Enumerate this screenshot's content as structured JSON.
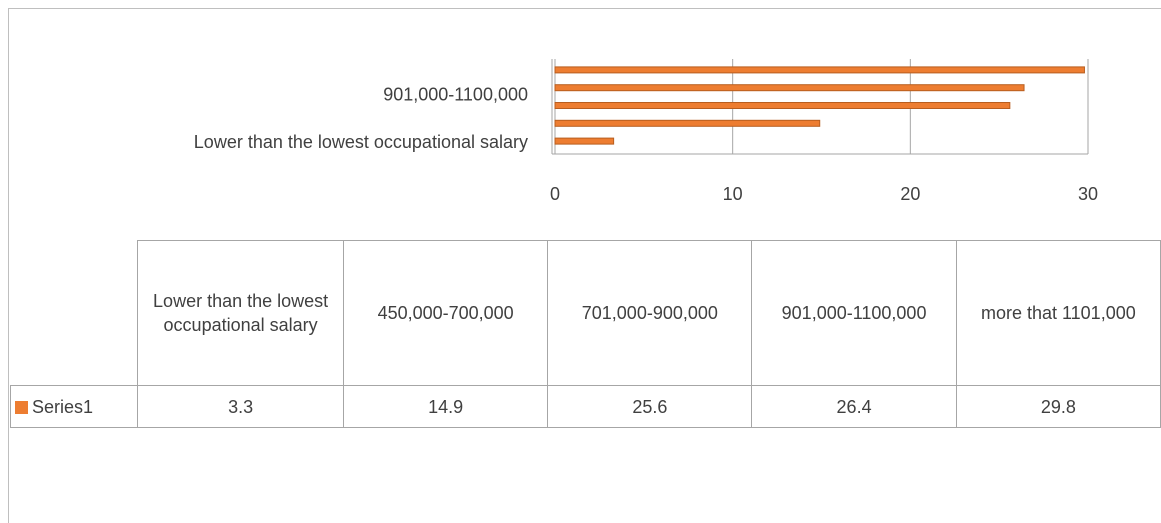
{
  "chart_data": {
    "type": "bar",
    "categories": [
      "Lower than the lowest occupational salary",
      "450,000-700,000",
      "701,000-900,000",
      "901,000-1100,000",
      "more that 1101,000"
    ],
    "series": [
      {
        "name": "Series1",
        "color": "#ED7D31",
        "values": [
          3.3,
          14.9,
          25.6,
          26.4,
          29.8
        ]
      }
    ],
    "xlim": [
      0,
      30
    ],
    "xticks": [
      0,
      10,
      20,
      30
    ],
    "grid": true
  }
}
